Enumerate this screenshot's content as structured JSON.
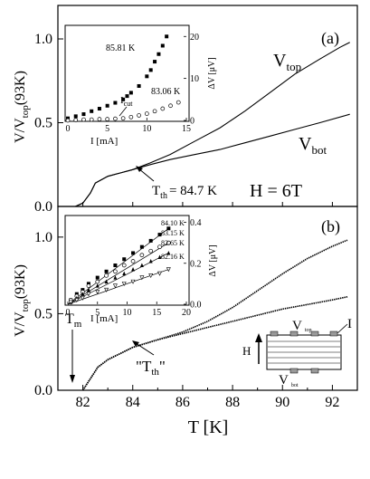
{
  "chart_data": [
    {
      "panel": "(a)",
      "type": "line",
      "ylabel": "V/V_top(93K)",
      "ylim": [
        0.0,
        1.2
      ],
      "xlim": [
        81,
        93
      ],
      "yticks": [
        "0.0",
        "0.5",
        "1.0"
      ],
      "series": [
        {
          "name": "V_top",
          "label_main": "V",
          "label_sub": "top",
          "x": [
            81.7,
            82.0,
            82.3,
            82.5,
            83.0,
            83.5,
            84.0,
            84.7,
            85.5,
            86.5,
            87.5,
            88.5,
            89.5,
            90.5,
            91.5,
            92.3,
            92.7
          ],
          "y": [
            0.0,
            0.02,
            0.08,
            0.14,
            0.18,
            0.2,
            0.22,
            0.26,
            0.31,
            0.39,
            0.47,
            0.57,
            0.68,
            0.79,
            0.88,
            0.95,
            0.98
          ]
        },
        {
          "name": "V_bot",
          "label_main": "V",
          "label_sub": "bot",
          "x": [
            81.7,
            82.0,
            82.3,
            82.5,
            83.0,
            83.5,
            84.0,
            84.7,
            85.5,
            86.5,
            87.5,
            88.5,
            89.5,
            90.5,
            91.5,
            92.7
          ],
          "y": [
            0.0,
            0.02,
            0.08,
            0.14,
            0.18,
            0.2,
            0.22,
            0.25,
            0.28,
            0.31,
            0.34,
            0.38,
            0.42,
            0.46,
            0.5,
            0.55
          ]
        }
      ],
      "annotations": {
        "panel_label": "(a)",
        "th_text": "T",
        "th_sub": "th",
        "th_value": "= 84.7 K",
        "field": "H = 6T"
      },
      "inset": {
        "xlabel": "I [mA]",
        "ylabel": "ΔV [μV]",
        "xlim": [
          0,
          15
        ],
        "ylim": [
          0,
          22
        ],
        "xticks": [
          "0",
          "5",
          "10",
          "15"
        ],
        "yticks": [
          "0",
          "10",
          "20"
        ],
        "series": [
          {
            "name": "85.81 K",
            "marker": "filled-square",
            "x": [
              0,
              1,
              2,
              3,
              4,
              5,
              6,
              7,
              7.5,
              8,
              9,
              10,
              10.5,
              11,
              11.5,
              12,
              12.5
            ],
            "y": [
              0.5,
              1,
              1.5,
              2.2,
              2.8,
              3.5,
              4.2,
              5,
              5.8,
              6.6,
              8.2,
              10.5,
              12,
              14,
              15.8,
              17.8,
              20
            ]
          },
          {
            "name": "83.06 K",
            "marker": "open-circle",
            "x": [
              0,
              1,
              2,
              3,
              4,
              5,
              6,
              7,
              8,
              9,
              10,
              11,
              12,
              13,
              14
            ],
            "y": [
              0,
              0.1,
              0.2,
              0.2,
              0.3,
              0.3,
              0.4,
              0.5,
              0.8,
              1.2,
              1.6,
              2.2,
              2.8,
              3.5,
              4.3
            ]
          }
        ],
        "icut_text": "I",
        "icut_sub": "cut"
      }
    },
    {
      "panel": "(b)",
      "type": "line",
      "xlabel": "T [K]",
      "ylabel": "V/V_top(93K)",
      "xlim": [
        81,
        93
      ],
      "ylim": [
        0.0,
        1.2
      ],
      "xticks": [
        "82",
        "84",
        "86",
        "88",
        "90",
        "92"
      ],
      "yticks": [
        "0.0",
        "0.5",
        "1.0"
      ],
      "series": [
        {
          "name": "V_top",
          "x": [
            82.0,
            82.2,
            82.4,
            82.6,
            83.0,
            83.5,
            84.0,
            85.0,
            86.0,
            87.0,
            88.0,
            89.0,
            90.0,
            91.0,
            92.0,
            92.6
          ],
          "y": [
            0.0,
            0.05,
            0.1,
            0.15,
            0.2,
            0.24,
            0.28,
            0.33,
            0.38,
            0.45,
            0.54,
            0.65,
            0.76,
            0.86,
            0.94,
            0.98
          ]
        },
        {
          "name": "V_bot",
          "x": [
            82.0,
            82.2,
            82.4,
            82.6,
            83.0,
            83.5,
            84.0,
            85.0,
            86.0,
            87.0,
            88.0,
            89.0,
            90.0,
            91.0,
            92.0,
            92.6
          ],
          "y": [
            0.0,
            0.05,
            0.1,
            0.15,
            0.2,
            0.24,
            0.28,
            0.33,
            0.37,
            0.41,
            0.45,
            0.49,
            0.53,
            0.56,
            0.59,
            0.61
          ]
        }
      ],
      "annotations": {
        "panel_label": "(b)",
        "tm_text": "T",
        "tm_sub": "m",
        "th_quoted_text": "\"T",
        "th_quoted_sub": "th",
        "th_quoted_end": "\"",
        "h_label": "H",
        "v_top_label": "V",
        "v_top_sub": "top",
        "v_bot_label": "V",
        "v_bot_sub": "bot",
        "i_label": "I"
      },
      "inset": {
        "xlabel": "I [mA]",
        "ylabel": "ΔV [μV]",
        "xlim": [
          0,
          20
        ],
        "ylim": [
          0,
          0.42
        ],
        "xticks": [
          "0",
          "5",
          "10",
          "15",
          "20"
        ],
        "yticks": [
          "0.0",
          "0.2",
          "0.4"
        ],
        "series": [
          {
            "name": "84.10 K",
            "marker": "filled-square",
            "x": [
              0.5,
              1.5,
              2.5,
              3.5,
              5,
              6.5,
              8,
              9.5,
              11,
              12.5,
              14,
              15.5,
              17
            ],
            "y": [
              0.02,
              0.05,
              0.07,
              0.1,
              0.13,
              0.16,
              0.19,
              0.22,
              0.25,
              0.28,
              0.31,
              0.34,
              0.37
            ]
          },
          {
            "name": "83.15 K",
            "marker": "open-circle",
            "x": [
              0.5,
              1.5,
              2.5,
              3.5,
              5,
              6.5,
              8,
              9.5,
              11,
              12.5,
              14,
              15.5,
              17
            ],
            "y": [
              0.02,
              0.04,
              0.06,
              0.09,
              0.11,
              0.14,
              0.16,
              0.19,
              0.21,
              0.24,
              0.26,
              0.28,
              0.3
            ]
          },
          {
            "name": "82.65 K",
            "marker": "filled-triangle",
            "x": [
              0.5,
              1.5,
              2.5,
              3.5,
              5,
              6.5,
              8,
              9.5,
              11,
              12.5,
              14,
              15.5,
              17
            ],
            "y": [
              0.01,
              0.03,
              0.05,
              0.07,
              0.09,
              0.11,
              0.13,
              0.15,
              0.17,
              0.19,
              0.21,
              0.23,
              0.25
            ]
          },
          {
            "name": "82.16 K",
            "marker": "open-triangle",
            "x": [
              0.5,
              1.5,
              2.5,
              3.5,
              5,
              6.5,
              8,
              9.5,
              11,
              12.5,
              14,
              15.5,
              17
            ],
            "y": [
              0.01,
              0.02,
              0.03,
              0.05,
              0.06,
              0.07,
              0.09,
              0.1,
              0.11,
              0.13,
              0.14,
              0.15,
              0.17
            ]
          }
        ]
      }
    }
  ]
}
